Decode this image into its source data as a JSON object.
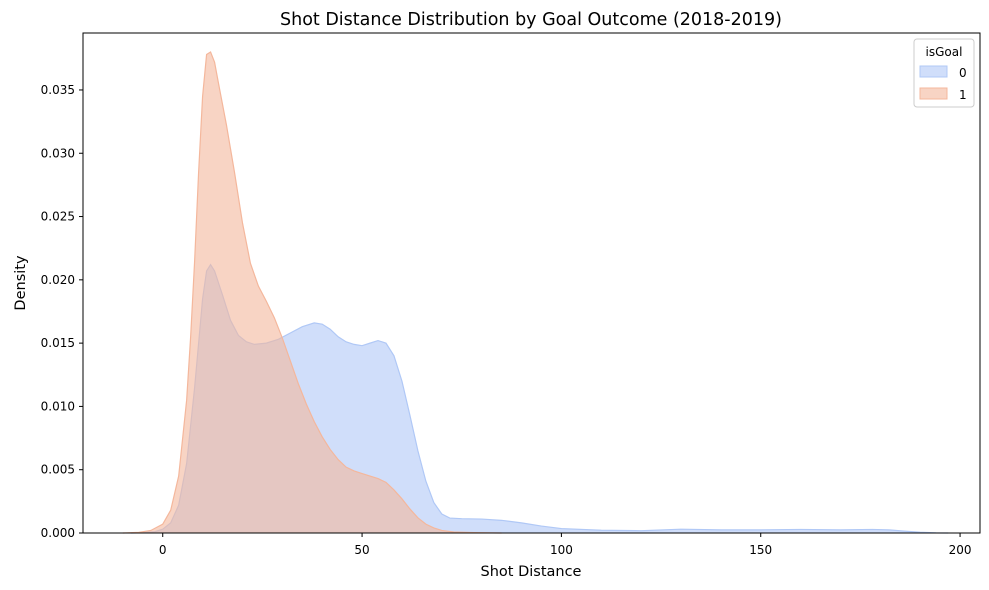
{
  "chart_data": {
    "type": "area",
    "title": "Shot Distance Distribution by Goal Outcome (2018-2019)",
    "xlabel": "Shot Distance",
    "ylabel": "Density",
    "xlim": [
      -20,
      205
    ],
    "ylim": [
      0,
      0.0395
    ],
    "xticks": [
      0,
      50,
      100,
      150,
      200
    ],
    "yticks": [
      0.0,
      0.005,
      0.01,
      0.015,
      0.02,
      0.025,
      0.03,
      0.035
    ],
    "ytick_labels": [
      "0.000",
      "0.005",
      "0.010",
      "0.015",
      "0.020",
      "0.025",
      "0.030",
      "0.035"
    ],
    "grid": false,
    "legend": {
      "title": "isGoal",
      "placement": "top-right"
    },
    "colors": {
      "0": "#b0c8f6",
      "1": "#f4b79c"
    },
    "series": [
      {
        "name": "0",
        "color": "#b0c8f6",
        "points": [
          [
            -8,
            0
          ],
          [
            -5,
            2e-05
          ],
          [
            -2,
            0.0001
          ],
          [
            0,
            0.0003
          ],
          [
            2,
            0.0008
          ],
          [
            4,
            0.0022
          ],
          [
            6,
            0.0055
          ],
          [
            8,
            0.0115
          ],
          [
            10,
            0.0185
          ],
          [
            11,
            0.0207
          ],
          [
            12,
            0.0212
          ],
          [
            13,
            0.0207
          ],
          [
            15,
            0.0188
          ],
          [
            17,
            0.0168
          ],
          [
            19,
            0.0156
          ],
          [
            21,
            0.0151
          ],
          [
            23,
            0.0149
          ],
          [
            26,
            0.015
          ],
          [
            29,
            0.0153
          ],
          [
            32,
            0.0158
          ],
          [
            35,
            0.0163
          ],
          [
            38,
            0.0166
          ],
          [
            40,
            0.0165
          ],
          [
            42,
            0.0161
          ],
          [
            44,
            0.0155
          ],
          [
            46,
            0.0151
          ],
          [
            48,
            0.0149
          ],
          [
            50,
            0.0148
          ],
          [
            52,
            0.015
          ],
          [
            54,
            0.0152
          ],
          [
            56,
            0.015
          ],
          [
            58,
            0.014
          ],
          [
            60,
            0.012
          ],
          [
            62,
            0.0093
          ],
          [
            64,
            0.0065
          ],
          [
            66,
            0.0041
          ],
          [
            68,
            0.0024
          ],
          [
            70,
            0.0015
          ],
          [
            72,
            0.00118
          ],
          [
            75,
            0.00113
          ],
          [
            80,
            0.0011
          ],
          [
            85,
            0.001
          ],
          [
            90,
            0.0008
          ],
          [
            95,
            0.00055
          ],
          [
            100,
            0.00035
          ],
          [
            110,
            0.00022
          ],
          [
            120,
            0.00018
          ],
          [
            130,
            0.0003
          ],
          [
            140,
            0.00025
          ],
          [
            150,
            0.00025
          ],
          [
            160,
            0.00028
          ],
          [
            170,
            0.00025
          ],
          [
            178,
            0.00028
          ],
          [
            182,
            0.00025
          ],
          [
            186,
            0.00015
          ],
          [
            190,
            6e-05
          ],
          [
            194,
            1e-05
          ],
          [
            197,
            0
          ]
        ]
      },
      {
        "name": "1",
        "color": "#f4b79c",
        "points": [
          [
            -10,
            0
          ],
          [
            -6,
            5e-05
          ],
          [
            -3,
            0.0002
          ],
          [
            0,
            0.0007
          ],
          [
            2,
            0.0018
          ],
          [
            4,
            0.0045
          ],
          [
            6,
            0.0105
          ],
          [
            7,
            0.0155
          ],
          [
            8,
            0.0215
          ],
          [
            9,
            0.0285
          ],
          [
            10,
            0.0345
          ],
          [
            11,
            0.0378
          ],
          [
            12,
            0.038
          ],
          [
            13,
            0.0372
          ],
          [
            14,
            0.0355
          ],
          [
            16,
            0.0322
          ],
          [
            18,
            0.0285
          ],
          [
            20,
            0.0245
          ],
          [
            22,
            0.0213
          ],
          [
            24,
            0.0195
          ],
          [
            26,
            0.0183
          ],
          [
            28,
            0.017
          ],
          [
            30,
            0.0154
          ],
          [
            32,
            0.0136
          ],
          [
            34,
            0.0118
          ],
          [
            36,
            0.0102
          ],
          [
            38,
            0.0088
          ],
          [
            40,
            0.0076
          ],
          [
            42,
            0.0066
          ],
          [
            44,
            0.0058
          ],
          [
            46,
            0.0052
          ],
          [
            48,
            0.0049
          ],
          [
            50,
            0.0047
          ],
          [
            52,
            0.0045
          ],
          [
            54,
            0.0043
          ],
          [
            56,
            0.004
          ],
          [
            58,
            0.0034
          ],
          [
            60,
            0.0027
          ],
          [
            62,
            0.0019
          ],
          [
            64,
            0.0012
          ],
          [
            66,
            0.0007
          ],
          [
            68,
            0.0004
          ],
          [
            70,
            0.0002
          ],
          [
            73,
            8e-05
          ],
          [
            78,
            3e-05
          ],
          [
            85,
            0
          ]
        ]
      }
    ]
  }
}
